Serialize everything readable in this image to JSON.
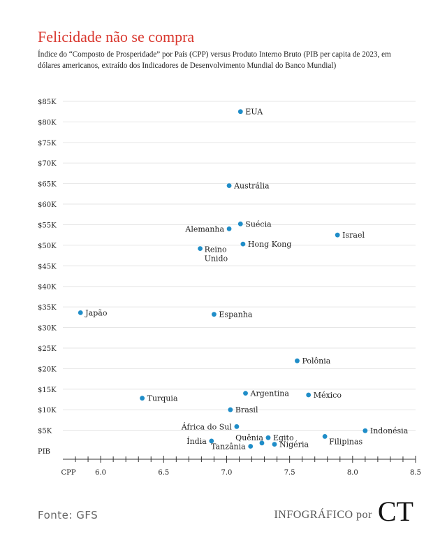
{
  "header": {
    "title": "Felicidade não se compra",
    "subtitle": "Índice do “Composto de Prosperidade” por País (CPP) versus Produto Interno Bruto (PIB per capita de 2023, em dólares americanos, extraído dos Indicadores de Desenvolvimento Mundial do Banco Mundial)"
  },
  "footer": {
    "source": "Fonte: GFS",
    "credit": "INFOGRÁFICO por",
    "logo": "CT"
  },
  "colors": {
    "accent": "#d9382f",
    "point": "#1f8dc8",
    "grid": "#e6e6e6",
    "text": "#222222"
  },
  "chart_data": {
    "type": "scatter",
    "xlabel": "CPP",
    "ylabel": "PIB",
    "xlim": [
      5.7,
      8.5
    ],
    "ylim": [
      0,
      85000
    ],
    "grid": "horizontal",
    "x_ticks": [
      6.0,
      6.5,
      7.0,
      7.5,
      8.0,
      8.5
    ],
    "x_tick_labels": [
      "6.0",
      "6.5",
      "7.0",
      "7.5",
      "8.0",
      "8.5"
    ],
    "y_ticks": [
      5000,
      10000,
      15000,
      20000,
      25000,
      30000,
      35000,
      40000,
      45000,
      50000,
      55000,
      60000,
      65000,
      70000,
      75000,
      80000,
      85000
    ],
    "y_tick_labels": [
      "$5K",
      "$10K",
      "$15K",
      "$20K",
      "$25K",
      "$30K",
      "$35K",
      "$40K",
      "$45K",
      "$50K",
      "$55K",
      "$60K",
      "$65K",
      "$70K",
      "$75K",
      "$80K",
      "$85K"
    ],
    "points": [
      {
        "label": "EUA",
        "x": 7.11,
        "y": 82500,
        "anchor": "right"
      },
      {
        "label": "Austrália",
        "x": 7.02,
        "y": 64500,
        "anchor": "right"
      },
      {
        "label": "Suécia",
        "x": 7.11,
        "y": 55200,
        "anchor": "right"
      },
      {
        "label": "Alemanha",
        "x": 7.02,
        "y": 54000,
        "anchor": "left"
      },
      {
        "label": "Israel",
        "x": 7.88,
        "y": 52500,
        "anchor": "right"
      },
      {
        "label": "Hong Kong",
        "x": 7.13,
        "y": 50300,
        "anchor": "right"
      },
      {
        "label": "Reino Unido",
        "x": 6.79,
        "y": 49200,
        "anchor": "below-right"
      },
      {
        "label": "Japão",
        "x": 5.84,
        "y": 33600,
        "anchor": "right"
      },
      {
        "label": "Espanha",
        "x": 6.9,
        "y": 33200,
        "anchor": "right"
      },
      {
        "label": "Polônia",
        "x": 7.56,
        "y": 21900,
        "anchor": "right"
      },
      {
        "label": "Argentina",
        "x": 7.15,
        "y": 14000,
        "anchor": "right"
      },
      {
        "label": "México",
        "x": 7.65,
        "y": 13600,
        "anchor": "right"
      },
      {
        "label": "Turquia",
        "x": 6.33,
        "y": 12800,
        "anchor": "right"
      },
      {
        "label": "Brasil",
        "x": 7.03,
        "y": 10000,
        "anchor": "right"
      },
      {
        "label": "África do Sul",
        "x": 7.08,
        "y": 5900,
        "anchor": "left"
      },
      {
        "label": "Indonésia",
        "x": 8.1,
        "y": 4900,
        "anchor": "right"
      },
      {
        "label": "Egito",
        "x": 7.33,
        "y": 3200,
        "anchor": "right"
      },
      {
        "label": "Filipinas",
        "x": 7.78,
        "y": 3500,
        "anchor": "below-right"
      },
      {
        "label": "Quênia",
        "x": 7.28,
        "y": 1900,
        "anchor": "left-up"
      },
      {
        "label": "Índia",
        "x": 6.88,
        "y": 2400,
        "anchor": "left"
      },
      {
        "label": "Tanzânia",
        "x": 7.19,
        "y": 1100,
        "anchor": "left"
      },
      {
        "label": "Nigéria",
        "x": 7.38,
        "y": 1600,
        "anchor": "right"
      }
    ]
  }
}
